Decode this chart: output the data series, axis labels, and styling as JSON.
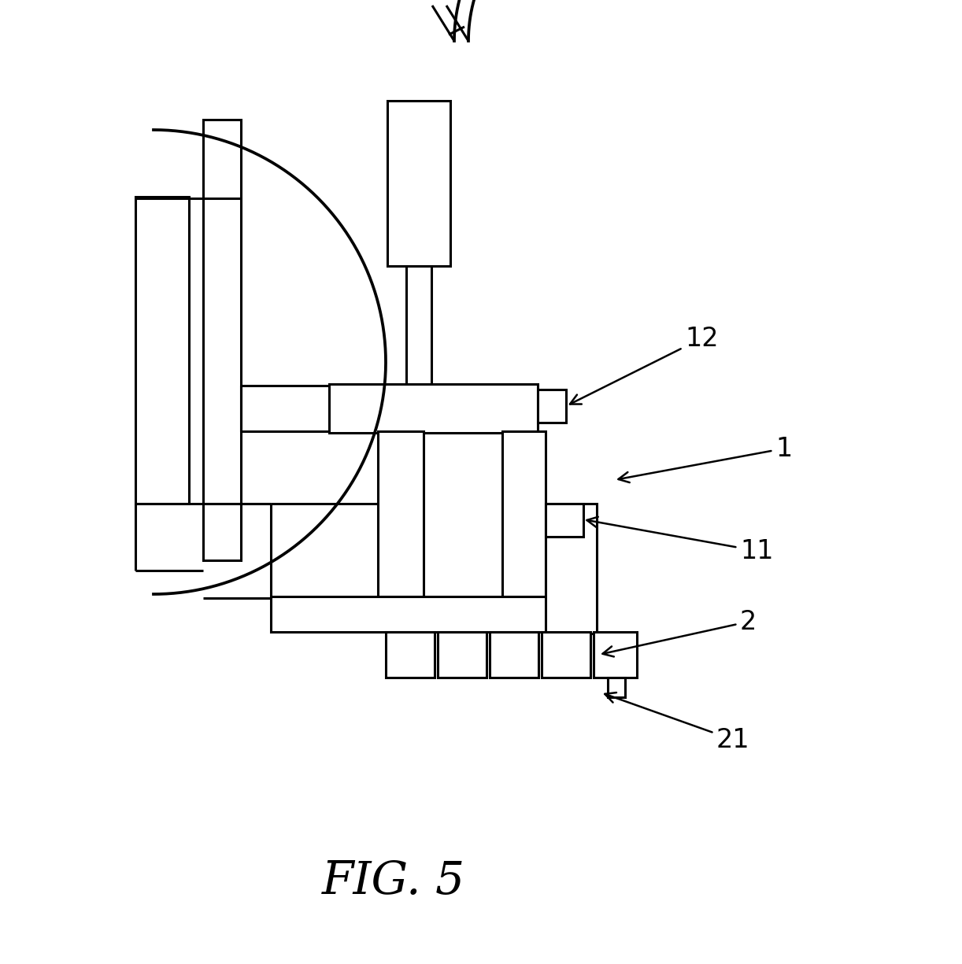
{
  "bg_color": "#ffffff",
  "line_color": "#000000",
  "lw": 2.2,
  "lw_thin": 1.5,
  "fig_title": "FIG. 5",
  "label_fontsize": 24,
  "title_fontsize": 42
}
